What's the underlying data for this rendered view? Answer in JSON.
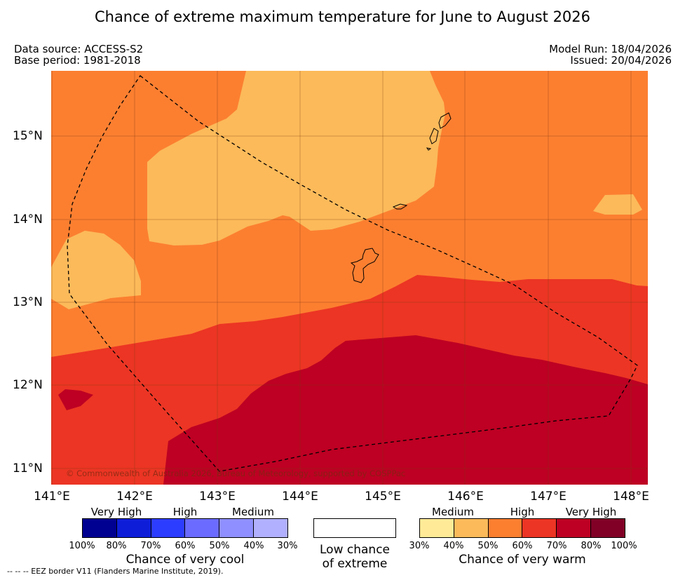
{
  "title": "Chance of extreme maximum temperature for June to August 2026",
  "info": {
    "data_source": "Data source: ACCESS-S2",
    "base_period": "Base period: 1981-2018",
    "model_run": "Model Run: 18/04/2026",
    "issued": "Issued: 20/04/2026"
  },
  "map": {
    "region_lon_range_deg": [
      141.0,
      148.2
    ],
    "region_lat_range_deg": [
      10.8,
      15.8
    ],
    "x_ticks": [
      "141°E",
      "142°E",
      "143°E",
      "144°E",
      "145°E",
      "146°E",
      "147°E",
      "148°E"
    ],
    "y_ticks": [
      "15°N",
      "14°N",
      "13°N",
      "12°N",
      "11°N"
    ],
    "copyright": "© Commonwealth of Australia 2026, Bureau of Meteorology, supported by COSPPac",
    "zone_colors": {
      "medium_warm_40_50": "#fcba5a",
      "high_warm_50_60": "#fc7f30",
      "high_warm_60_70": "#ec3524",
      "very_high_warm_70_80": "#bd0023"
    }
  },
  "legend": {
    "cool": {
      "categories": [
        "Very High",
        "High",
        "Medium"
      ],
      "colors": [
        "#000091",
        "#0e1ed8",
        "#2d3dff",
        "#6b6bff",
        "#8f8fff",
        "#b0b0ff"
      ],
      "ticks": [
        "100%",
        "80%",
        "70%",
        "60%",
        "50%",
        "40%",
        "30%"
      ],
      "title": "Chance of very cool"
    },
    "neutral": {
      "line1": "Low chance",
      "line2": "of extreme"
    },
    "warm": {
      "categories": [
        "Medium",
        "High",
        "Very High"
      ],
      "colors": [
        "#ffeb97",
        "#fcba5a",
        "#fc7f30",
        "#ec3524",
        "#bd0023",
        "#800026"
      ],
      "ticks": [
        "30%",
        "40%",
        "50%",
        "60%",
        "70%",
        "80%",
        "100%"
      ],
      "title": "Chance of very warm"
    }
  },
  "footnote": "--  --  -- EEZ border V11 (Flanders Marine Institute, 2019)."
}
